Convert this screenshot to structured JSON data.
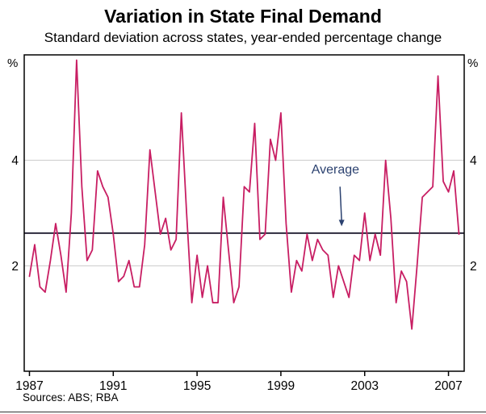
{
  "chart_data": {
    "type": "line",
    "title": "Variation in State Final Demand",
    "subtitle": "Standard deviation across states, year-ended percentage change",
    "unit_label_left": "%",
    "unit_label_right": "%",
    "source": "Sources: ABS; RBA",
    "xlim": [
      1986.75,
      2007.75
    ],
    "ylim": [
      0,
      6
    ],
    "xticks": [
      1987,
      1991,
      1995,
      1999,
      2003,
      2007
    ],
    "yticks": [
      2,
      4
    ],
    "grid": "horizontal",
    "legend_position": "none",
    "average_value": 2.62,
    "annotation": {
      "label": "Average",
      "text_x": 2001.6,
      "text_y": 3.75,
      "arrow_from_y": 3.5,
      "arrow_tip_x": 2001.9,
      "arrow_tip_y": 2.75
    },
    "colors": {
      "series": "#c81e63",
      "average": "#2d2a3d",
      "grid": "#c9c9c9",
      "frame": "#000000",
      "annotation": "#2c4270"
    },
    "series": [
      {
        "name": "Standard deviation across states",
        "color": "#c81e63",
        "x_start": 1987.0,
        "x_step": 0.25,
        "values": [
          1.8,
          2.4,
          1.6,
          1.5,
          2.1,
          2.8,
          2.2,
          1.5,
          3.0,
          5.9,
          3.5,
          2.1,
          2.3,
          3.8,
          3.5,
          3.3,
          2.6,
          1.7,
          1.8,
          2.1,
          1.6,
          1.6,
          2.4,
          4.2,
          3.4,
          2.6,
          2.9,
          2.3,
          2.5,
          4.9,
          3.0,
          1.3,
          2.2,
          1.4,
          2.0,
          1.3,
          1.3,
          3.3,
          2.3,
          1.3,
          1.6,
          3.5,
          3.4,
          4.7,
          2.5,
          2.6,
          4.4,
          4.0,
          4.9,
          2.8,
          1.5,
          2.1,
          1.9,
          2.6,
          2.1,
          2.5,
          2.3,
          2.2,
          1.4,
          2.0,
          1.7,
          1.4,
          2.2,
          2.1,
          3.0,
          2.1,
          2.6,
          2.2,
          4.0,
          2.9,
          1.3,
          1.9,
          1.7,
          0.8,
          2.0,
          3.3,
          3.4,
          3.5,
          5.6,
          3.6,
          3.4,
          3.8,
          2.6
        ]
      },
      {
        "name": "Average",
        "style": "hline",
        "color": "#2d2a3d",
        "value": 2.62
      }
    ]
  }
}
